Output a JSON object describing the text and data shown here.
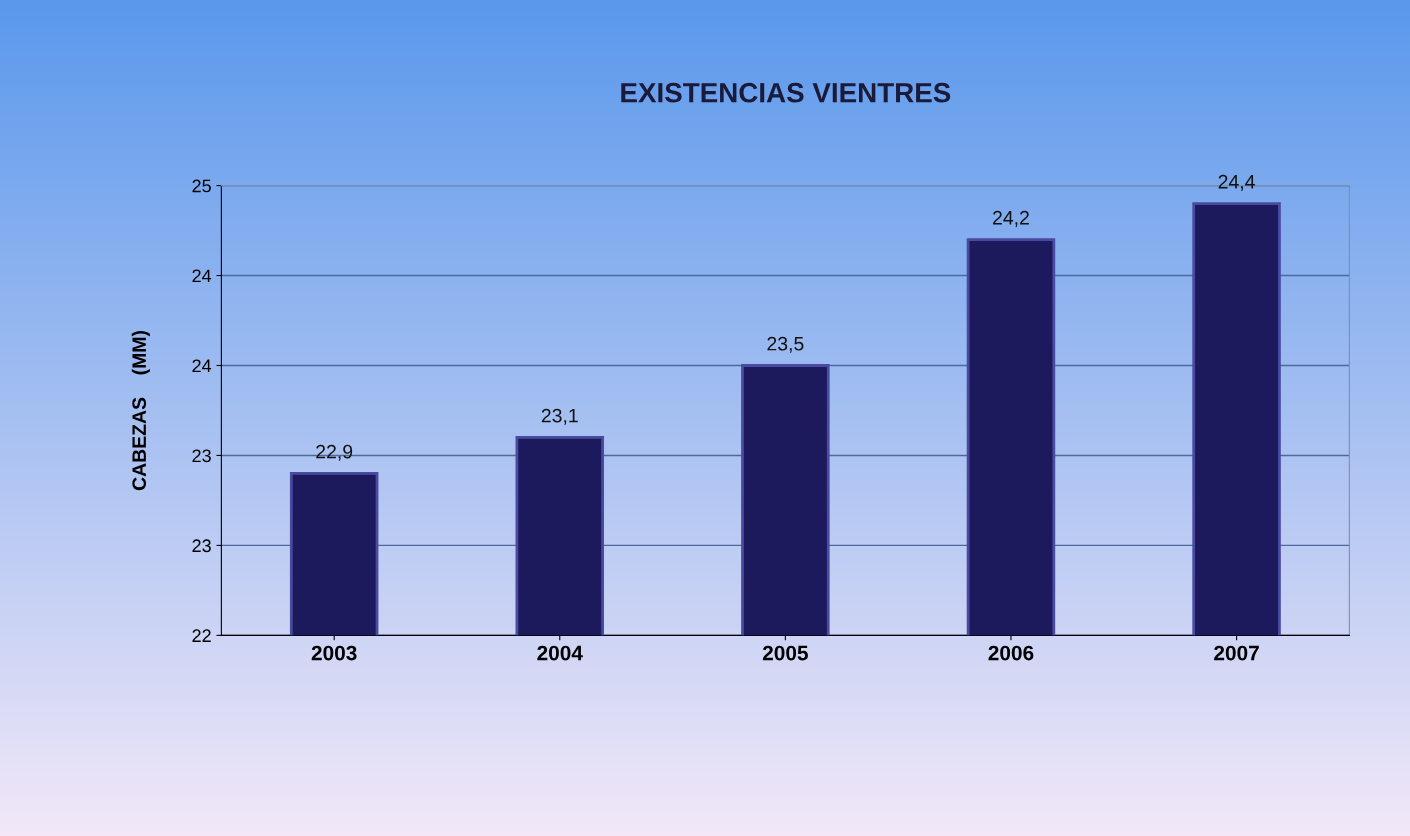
{
  "chart_data": {
    "type": "bar",
    "title": "EXISTENCIAS VIENTRES",
    "ylabel": "CABEZAS    (MM)",
    "categories": [
      "2003",
      "2004",
      "2005",
      "2006",
      "2007"
    ],
    "values": [
      22.9,
      23.1,
      23.5,
      24.2,
      24.4
    ],
    "color": "#1c1a5c",
    "value_labels": [
      "22,9",
      "23,1",
      "23,5",
      "24,2",
      "24,4"
    ],
    "ylim": [
      22,
      24.5
    ],
    "yticks": [
      22,
      {
        "value": 22.5,
        "label": "23"
      },
      23,
      {
        "value": 23.5,
        "label": "24"
      },
      24,
      {
        "value": 24.5,
        "label": "25"
      }
    ],
    "grid": "y",
    "legend": false
  }
}
